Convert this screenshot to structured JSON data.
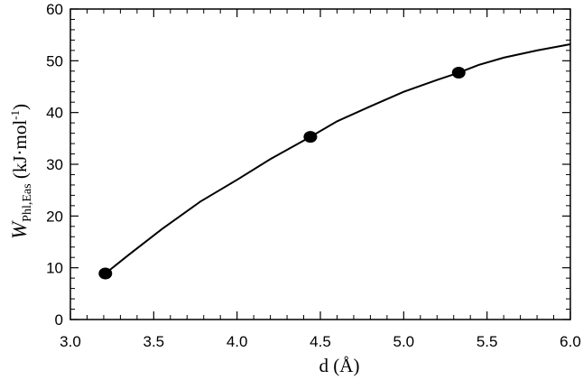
{
  "chart_data": {
    "type": "line",
    "xlabel": "d (Å)",
    "ylabel": {
      "symbol": "W",
      "subscript": "Phl,Eas",
      "unit_open": " (kJ·mol",
      "unit_exp": "-1",
      "unit_close": ")"
    },
    "xlim": [
      3.0,
      6.0
    ],
    "ylim": [
      0,
      60
    ],
    "x_ticks": [
      "3.0",
      "3.5",
      "4.0",
      "4.5",
      "5.0",
      "5.5",
      "6.0"
    ],
    "y_ticks": [
      "0",
      "10",
      "20",
      "30",
      "40",
      "50",
      "60"
    ],
    "grid": false,
    "series": [
      {
        "style": "line",
        "x": [
          3.21,
          3.35,
          3.55,
          3.78,
          4.0,
          4.2,
          4.44,
          4.6,
          4.8,
          5.0,
          5.2,
          5.33,
          5.45,
          5.6,
          5.8,
          6.0
        ],
        "y": [
          8.9,
          12.5,
          17.5,
          22.8,
          27.0,
          31.0,
          35.3,
          38.3,
          41.2,
          44.0,
          46.3,
          47.7,
          49.2,
          50.6,
          52.0,
          53.2
        ]
      },
      {
        "style": "markers",
        "x": [
          3.21,
          4.44,
          5.33
        ],
        "y": [
          8.9,
          35.3,
          47.7
        ]
      }
    ]
  }
}
